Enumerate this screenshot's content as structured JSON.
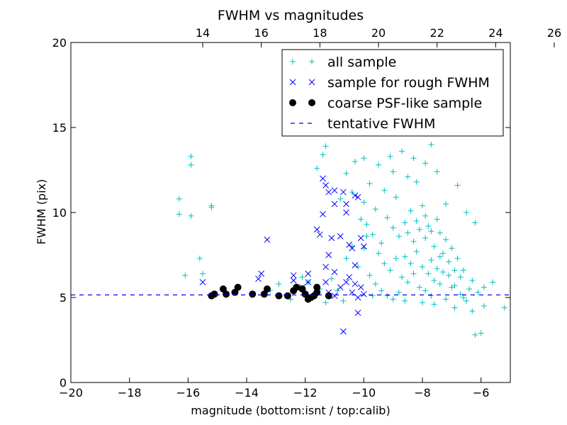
{
  "chart_data": {
    "type": "scatter",
    "title": "FWHM vs magnitudes",
    "xlabel": "magnitude (bottom:isnt / top:calib)",
    "ylabel": "FWHM (pix)",
    "xlim": [
      -20,
      -5
    ],
    "ylim": [
      0,
      20
    ],
    "x_ticks": [
      -20,
      -18,
      -16,
      -14,
      -12,
      -10,
      -8,
      -6
    ],
    "x_tick_labels": [
      "−20",
      "−18",
      "−16",
      "−14",
      "−12",
      "−10",
      "−8",
      "−6"
    ],
    "y_ticks": [
      0,
      5,
      10,
      15,
      20
    ],
    "y_tick_labels": [
      "0",
      "5",
      "10",
      "15",
      "20"
    ],
    "top_axis": {
      "offset": 29.5,
      "ticks": [
        14,
        16,
        18,
        20,
        22,
        24,
        26
      ],
      "tick_labels": [
        "14",
        "16",
        "18",
        "20",
        "22",
        "24",
        "26"
      ]
    },
    "grid": false,
    "legend_position": "top-right",
    "series": [
      {
        "name": "all sample",
        "marker": "plus",
        "color": "#00bfbf",
        "points": [
          [
            -16.3,
            10.8
          ],
          [
            -16.3,
            9.9
          ],
          [
            -15.9,
            13.3
          ],
          [
            -15.9,
            12.8
          ],
          [
            -15.9,
            9.8
          ],
          [
            -15.2,
            10.4
          ],
          [
            -15.2,
            10.3
          ],
          [
            -16.1,
            6.3
          ],
          [
            -15.6,
            7.3
          ],
          [
            -15.5,
            6.4
          ],
          [
            -11.6,
            12.6
          ],
          [
            -11.4,
            13.4
          ],
          [
            -11.3,
            13.9
          ],
          [
            -10.6,
            12.3
          ],
          [
            -10.3,
            13.0
          ],
          [
            -10.0,
            13.2
          ],
          [
            -9.5,
            12.8
          ],
          [
            -9.8,
            11.7
          ],
          [
            -9.1,
            13.3
          ],
          [
            -9.0,
            12.4
          ],
          [
            -8.7,
            13.6
          ],
          [
            -8.5,
            12.1
          ],
          [
            -8.3,
            13.2
          ],
          [
            -8.2,
            11.8
          ],
          [
            -7.9,
            12.9
          ],
          [
            -7.7,
            14.0
          ],
          [
            -7.5,
            12.4
          ],
          [
            -9.3,
            11.3
          ],
          [
            -8.9,
            10.9
          ],
          [
            -6.8,
            11.6
          ],
          [
            -7.2,
            10.5
          ],
          [
            -6.5,
            10.0
          ],
          [
            -6.2,
            9.4
          ],
          [
            -10.8,
            10.8
          ],
          [
            -10.4,
            11.2
          ],
          [
            -10.0,
            10.6
          ],
          [
            -9.6,
            10.2
          ],
          [
            -9.9,
            9.3
          ],
          [
            -9.7,
            8.7
          ],
          [
            -9.4,
            8.2
          ],
          [
            -9.2,
            9.7
          ],
          [
            -9.0,
            9.1
          ],
          [
            -8.8,
            8.6
          ],
          [
            -8.6,
            9.4
          ],
          [
            -8.4,
            10.1
          ],
          [
            -8.3,
            8.3
          ],
          [
            -8.1,
            9.0
          ],
          [
            -8.0,
            10.4
          ],
          [
            -7.9,
            8.5
          ],
          [
            -7.8,
            9.2
          ],
          [
            -7.6,
            8.0
          ],
          [
            -7.5,
            9.6
          ],
          [
            -7.4,
            8.8
          ],
          [
            -7.3,
            7.6
          ],
          [
            -7.2,
            8.4
          ],
          [
            -7.1,
            7.1
          ],
          [
            -7.0,
            7.9
          ],
          [
            -6.9,
            6.6
          ],
          [
            -6.8,
            7.3
          ],
          [
            -6.7,
            6.2
          ],
          [
            -8.6,
            7.4
          ],
          [
            -8.4,
            7.0
          ],
          [
            -8.2,
            7.7
          ],
          [
            -8.0,
            6.8
          ],
          [
            -7.8,
            6.4
          ],
          [
            -7.7,
            7.2
          ],
          [
            -7.6,
            6.0
          ],
          [
            -7.5,
            6.7
          ],
          [
            -7.4,
            5.8
          ],
          [
            -7.3,
            6.5
          ],
          [
            -9.5,
            7.6
          ],
          [
            -9.3,
            7.0
          ],
          [
            -9.1,
            6.6
          ],
          [
            -8.9,
            7.3
          ],
          [
            -8.7,
            6.2
          ],
          [
            -8.5,
            5.9
          ],
          [
            -8.3,
            6.4
          ],
          [
            -8.1,
            5.6
          ],
          [
            -7.9,
            5.4
          ],
          [
            -7.7,
            5.1
          ],
          [
            -9.8,
            6.3
          ],
          [
            -9.6,
            5.8
          ],
          [
            -9.4,
            5.4
          ],
          [
            -9.2,
            5.1
          ],
          [
            -9.0,
            4.9
          ],
          [
            -8.8,
            5.3
          ],
          [
            -8.6,
            4.8
          ],
          [
            -7.6,
            4.6
          ],
          [
            -7.2,
            4.9
          ],
          [
            -7.0,
            5.6
          ],
          [
            -6.9,
            4.4
          ],
          [
            -6.7,
            5.2
          ],
          [
            -6.5,
            4.8
          ],
          [
            -6.4,
            5.5
          ],
          [
            -6.3,
            4.2
          ],
          [
            -6.2,
            2.8
          ],
          [
            -6.0,
            2.9
          ],
          [
            -5.9,
            4.5
          ],
          [
            -5.6,
            5.9
          ],
          [
            -5.2,
            4.4
          ],
          [
            -6.6,
            6.6
          ],
          [
            -6.3,
            6.0
          ],
          [
            -6.1,
            5.3
          ],
          [
            -5.9,
            5.6
          ],
          [
            -10.4,
            8.0
          ],
          [
            -10.6,
            7.3
          ],
          [
            -10.2,
            6.8
          ],
          [
            -10.0,
            7.9
          ],
          [
            -9.9,
            8.6
          ],
          [
            -10.1,
            9.6
          ],
          [
            -8.5,
            8.8
          ],
          [
            -8.2,
            9.5
          ],
          [
            -7.9,
            9.8
          ],
          [
            -7.7,
            8.9
          ],
          [
            -7.4,
            7.4
          ],
          [
            -7.1,
            6.3
          ],
          [
            -6.9,
            5.7
          ],
          [
            -6.6,
            5.0
          ],
          [
            -9.7,
            5.1
          ],
          [
            -8.0,
            4.7
          ],
          [
            -12.9,
            5.8
          ],
          [
            -12.1,
            6.2
          ],
          [
            -11.9,
            5.9
          ],
          [
            -11.5,
            5.5
          ],
          [
            -11.1,
            6.1
          ],
          [
            -10.9,
            5.4
          ],
          [
            -10.7,
            4.8
          ],
          [
            -11.3,
            4.7
          ],
          [
            -12.5,
            4.9
          ],
          [
            -13.2,
            5.4
          ]
        ]
      },
      {
        "name": "sample for rough FWHM",
        "marker": "x",
        "color": "#0000ff",
        "points": [
          [
            -15.5,
            5.9
          ],
          [
            -13.3,
            8.4
          ],
          [
            -13.5,
            6.4
          ],
          [
            -13.6,
            6.1
          ],
          [
            -12.4,
            6.3
          ],
          [
            -12.4,
            6.0
          ],
          [
            -11.9,
            6.4
          ],
          [
            -11.9,
            5.9
          ],
          [
            -11.4,
            12.0
          ],
          [
            -11.3,
            11.6
          ],
          [
            -11.2,
            11.2
          ],
          [
            -11.0,
            10.5
          ],
          [
            -11.0,
            11.3
          ],
          [
            -10.7,
            11.2
          ],
          [
            -10.6,
            10.5
          ],
          [
            -10.6,
            10.0
          ],
          [
            -10.3,
            11.0
          ],
          [
            -10.2,
            10.9
          ],
          [
            -11.4,
            9.9
          ],
          [
            -11.1,
            8.5
          ],
          [
            -11.5,
            8.7
          ],
          [
            -11.6,
            9.0
          ],
          [
            -10.8,
            8.6
          ],
          [
            -10.5,
            8.1
          ],
          [
            -10.4,
            7.9
          ],
          [
            -10.3,
            6.9
          ],
          [
            -10.1,
            8.5
          ],
          [
            -10.0,
            8.0
          ],
          [
            -11.2,
            7.5
          ],
          [
            -11.3,
            6.8
          ],
          [
            -11.0,
            6.5
          ],
          [
            -10.5,
            6.2
          ],
          [
            -10.3,
            5.8
          ],
          [
            -10.1,
            5.6
          ],
          [
            -10.0,
            5.2
          ],
          [
            -10.2,
            5.0
          ],
          [
            -10.4,
            5.3
          ],
          [
            -10.6,
            5.9
          ],
          [
            -10.8,
            5.6
          ],
          [
            -11.0,
            5.1
          ],
          [
            -11.2,
            5.3
          ],
          [
            -10.2,
            4.1
          ],
          [
            -10.7,
            3.0
          ],
          [
            -11.3,
            5.9
          ],
          [
            -12.1,
            5.6
          ]
        ]
      },
      {
        "name": "coarse PSF-like sample",
        "marker": "dot",
        "color": "#000000",
        "points": [
          [
            -15.2,
            5.1
          ],
          [
            -15.1,
            5.2
          ],
          [
            -14.8,
            5.5
          ],
          [
            -14.7,
            5.2
          ],
          [
            -14.4,
            5.3
          ],
          [
            -14.3,
            5.6
          ],
          [
            -13.8,
            5.2
          ],
          [
            -13.4,
            5.2
          ],
          [
            -13.3,
            5.5
          ],
          [
            -12.9,
            5.1
          ],
          [
            -12.6,
            5.1
          ],
          [
            -12.4,
            5.4
          ],
          [
            -12.3,
            5.6
          ],
          [
            -12.1,
            5.5
          ],
          [
            -12.0,
            5.2
          ],
          [
            -11.9,
            4.9
          ],
          [
            -11.8,
            5.0
          ],
          [
            -11.7,
            5.1
          ],
          [
            -11.6,
            5.6
          ],
          [
            -11.6,
            5.3
          ],
          [
            -11.2,
            5.1
          ]
        ]
      },
      {
        "name": "tentative FWHM",
        "marker": "dashed-line",
        "color": "#0000ff",
        "y": 5.15
      }
    ]
  }
}
